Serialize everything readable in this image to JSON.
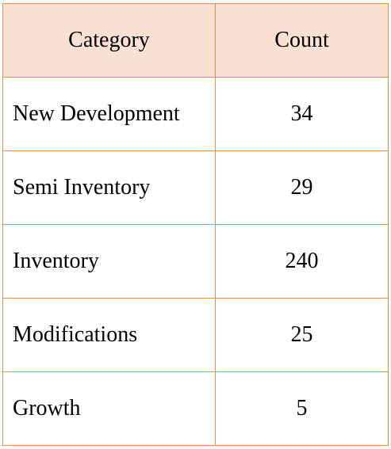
{
  "table": {
    "headers": [
      "Category",
      "Count"
    ],
    "rows": [
      {
        "category": "New Development",
        "count": "34"
      },
      {
        "category": "Semi Inventory",
        "count": "29"
      },
      {
        "category": "Inventory",
        "count": "240"
      },
      {
        "category": "Modifications",
        "count": "25"
      },
      {
        "category": "Growth",
        "count": "5"
      }
    ],
    "header_bg": "#fbe1d4",
    "border_color": "#d9924f"
  }
}
